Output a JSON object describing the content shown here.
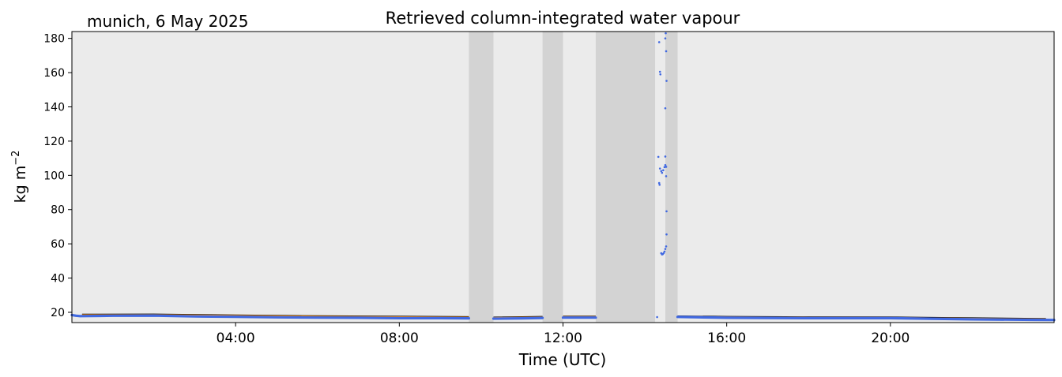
{
  "chart_data": {
    "type": "scatter",
    "title": "Retrieved column-integrated water vapour",
    "subtitle": "munich, 6 May 2025",
    "xlabel": "Time (UTC)",
    "ylabel": "kg m",
    "ylabel_superscript": "−2",
    "xlim_hours": [
      0,
      24
    ],
    "ylim": [
      14,
      184
    ],
    "xticks": [
      {
        "hour": 4,
        "label": "04:00"
      },
      {
        "hour": 8,
        "label": "08:00"
      },
      {
        "hour": 12,
        "label": "12:00"
      },
      {
        "hour": 16,
        "label": "16:00"
      },
      {
        "hour": 20,
        "label": "20:00"
      }
    ],
    "yticks": [
      20,
      40,
      60,
      80,
      100,
      120,
      140,
      160,
      180
    ],
    "grid": false,
    "colors": {
      "plot_background": "#ebebeb",
      "gap_shading": "#d3d3d3",
      "points": "#4169e1",
      "line": "#ff8c00",
      "line_edge": "#000000"
    },
    "shaded_gaps_hours": [
      [
        9.7,
        10.3
      ],
      [
        11.5,
        12.0
      ],
      [
        12.8,
        14.25
      ],
      [
        14.5,
        14.8
      ]
    ],
    "series": [
      {
        "kind": "line",
        "segments": [
          [
            [
              0.25,
              18.6
            ],
            [
              2.0,
              18.7
            ],
            [
              4.0,
              18.2
            ],
            [
              6.0,
              17.7
            ],
            [
              8.0,
              17.4
            ],
            [
              9.7,
              17.2
            ]
          ],
          [
            [
              10.3,
              16.9
            ],
            [
              11.5,
              17.3
            ]
          ],
          [
            [
              12.0,
              17.5
            ],
            [
              12.8,
              17.5
            ]
          ],
          [
            [
              14.8,
              17.6
            ],
            [
              16.0,
              17.3
            ],
            [
              18.0,
              17.1
            ],
            [
              20.0,
              17.0
            ],
            [
              22.0,
              16.5
            ],
            [
              23.8,
              16.1
            ]
          ]
        ]
      },
      {
        "kind": "points",
        "segments": [
          [
            [
              0.0,
              18.4
            ],
            [
              0.1,
              18.0
            ],
            [
              0.2,
              17.8
            ],
            [
              1.0,
              18.0
            ],
            [
              2.0,
              18.1
            ],
            [
              3.0,
              17.6
            ],
            [
              4.0,
              17.4
            ],
            [
              5.0,
              17.1
            ],
            [
              6.0,
              16.9
            ],
            [
              7.0,
              16.8
            ],
            [
              8.0,
              16.6
            ],
            [
              9.0,
              16.6
            ],
            [
              9.7,
              16.5
            ]
          ],
          [
            [
              10.3,
              16.3
            ],
            [
              11.0,
              16.5
            ],
            [
              11.5,
              16.7
            ]
          ],
          [
            [
              12.0,
              16.9
            ],
            [
              12.8,
              16.9
            ]
          ],
          [
            [
              14.8,
              17.3
            ],
            [
              16.0,
              16.8
            ],
            [
              18.0,
              16.6
            ],
            [
              20.0,
              16.6
            ],
            [
              22.0,
              15.9
            ],
            [
              23.5,
              15.6
            ],
            [
              24.0,
              15.5
            ]
          ]
        ],
        "spikes": [
          [
            14.3,
            17.2
          ],
          [
            14.35,
            177.8
          ],
          [
            14.37,
            160.5
          ],
          [
            14.38,
            159.0
          ],
          [
            14.33,
            110.8
          ],
          [
            14.37,
            104.0
          ],
          [
            14.4,
            102.5
          ],
          [
            14.42,
            101.5
          ],
          [
            14.45,
            103.0
          ],
          [
            14.48,
            104.8
          ],
          [
            14.5,
            106.0
          ],
          [
            14.52,
            105.0
          ],
          [
            14.35,
            95.5
          ],
          [
            14.36,
            94.5
          ],
          [
            14.4,
            54.5
          ],
          [
            14.42,
            53.8
          ],
          [
            14.44,
            54.0
          ],
          [
            14.46,
            54.6
          ],
          [
            14.48,
            55.5
          ],
          [
            14.5,
            57.0
          ],
          [
            14.52,
            58.5
          ],
          [
            14.5,
            180.0
          ],
          [
            14.51,
            183.0
          ],
          [
            14.52,
            172.5
          ],
          [
            14.53,
            155.2
          ],
          [
            14.5,
            139.2
          ],
          [
            14.5,
            111.0
          ],
          [
            14.52,
            99.5
          ],
          [
            14.53,
            79.0
          ],
          [
            14.53,
            65.5
          ]
        ]
      }
    ]
  }
}
